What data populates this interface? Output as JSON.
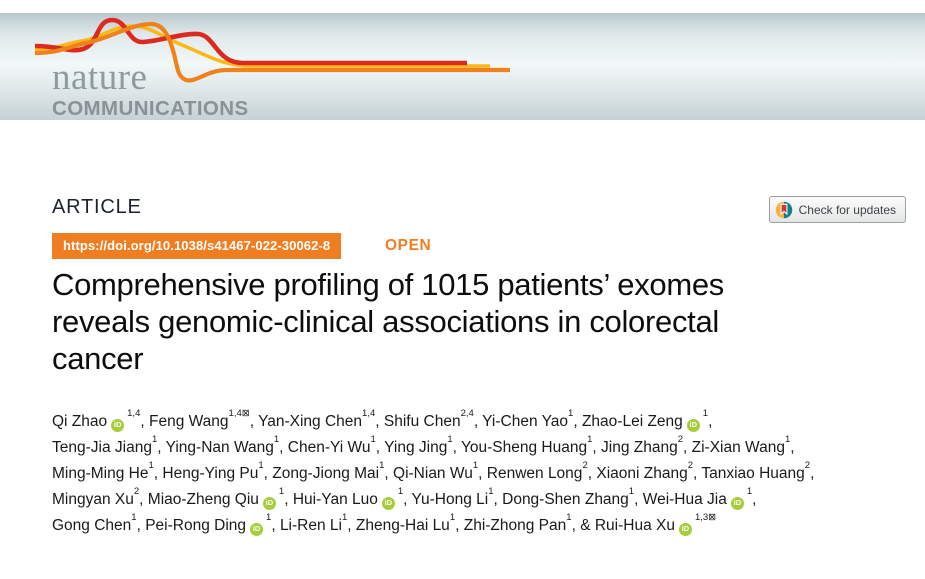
{
  "journal": {
    "name_top": "nature",
    "name_bottom": "COMMUNICATIONS"
  },
  "article_label": "ARTICLE",
  "doi": "https://doi.org/10.1038/s41467-022-30062-8",
  "open_label": "OPEN",
  "check_updates_label": "Check for updates",
  "title_lines": [
    "Comprehensive profiling of 1015 patients’ exomes",
    "reveals genomic-clinical associations in colorectal",
    "cancer"
  ],
  "orcid_icon_text": "iD",
  "mail_glyph": "⊠",
  "authors_lines": [
    [
      {
        "name": "Qi Zhao",
        "orcid": true,
        "sup": "1,4"
      },
      {
        "name": "Feng Wang",
        "sup": "1,4",
        "mail": true
      },
      {
        "name": "Yan-Xing Chen",
        "sup": "1,4"
      },
      {
        "name": "Shifu Chen",
        "sup": "2,4"
      },
      {
        "name": "Yi-Chen Yao",
        "sup": "1"
      },
      {
        "name": "Zhao-Lei Zeng",
        "orcid": true,
        "sup": "1"
      }
    ],
    [
      {
        "name": "Teng-Jia Jiang",
        "sup": "1"
      },
      {
        "name": "Ying-Nan Wang",
        "sup": "1"
      },
      {
        "name": "Chen-Yi Wu",
        "sup": "1"
      },
      {
        "name": "Ying Jing",
        "sup": "1"
      },
      {
        "name": "You-Sheng Huang",
        "sup": "1"
      },
      {
        "name": "Jing Zhang",
        "sup": "2"
      },
      {
        "name": "Zi-Xian Wang",
        "sup": "1"
      }
    ],
    [
      {
        "name": "Ming-Ming He",
        "sup": "1"
      },
      {
        "name": "Heng-Ying Pu",
        "sup": "1"
      },
      {
        "name": "Zong-Jiong Mai",
        "sup": "1"
      },
      {
        "name": "Qi-Nian Wu",
        "sup": "1"
      },
      {
        "name": "Renwen Long",
        "sup": "2"
      },
      {
        "name": "Xiaoni Zhang",
        "sup": "2"
      },
      {
        "name": "Tanxiao Huang",
        "sup": "2"
      }
    ],
    [
      {
        "name": "Mingyan Xu",
        "sup": "2"
      },
      {
        "name": "Miao-Zheng Qiu",
        "orcid": true,
        "sup": "1"
      },
      {
        "name": "Hui-Yan Luo",
        "orcid": true,
        "sup": "1"
      },
      {
        "name": "Yu-Hong Li",
        "sup": "1"
      },
      {
        "name": "Dong-Shen Zhang",
        "sup": "1"
      },
      {
        "name": "Wei-Hua Jia",
        "orcid": true,
        "sup": "1"
      }
    ],
    [
      {
        "name": "Gong Chen",
        "sup": "1"
      },
      {
        "name": "Pei-Rong Ding",
        "orcid": true,
        "sup": "1"
      },
      {
        "name": "Li-Ren Li",
        "sup": "1"
      },
      {
        "name": "Zheng-Hai Lu",
        "sup": "1"
      },
      {
        "name": "Zhi-Zhong Pan",
        "sup": "1"
      },
      {
        "name": "Rui-Hua Xu",
        "orcid": true,
        "sup": "1,3",
        "mail": true,
        "amp": true
      }
    ]
  ],
  "colors": {
    "accent-orange": "#ef7d22",
    "orcid-green": "#a6ce39",
    "swoosh-red": "#dc2a20",
    "swoosh-orange": "#f0821e",
    "swoosh-yellow": "#fcb815",
    "logo-gray": "#8d9ba1",
    "banner-top": "#b9c8ce",
    "banner-mid": "#f3f8f8",
    "banner-bottom": "#c6d2d6",
    "crossmark-yellow": "#f9b03f",
    "crossmark-teal": "#157d8e",
    "crossmark-red": "#cf3a32",
    "title-color": "#0d0d0d",
    "text-color": "#1a1a1a"
  }
}
